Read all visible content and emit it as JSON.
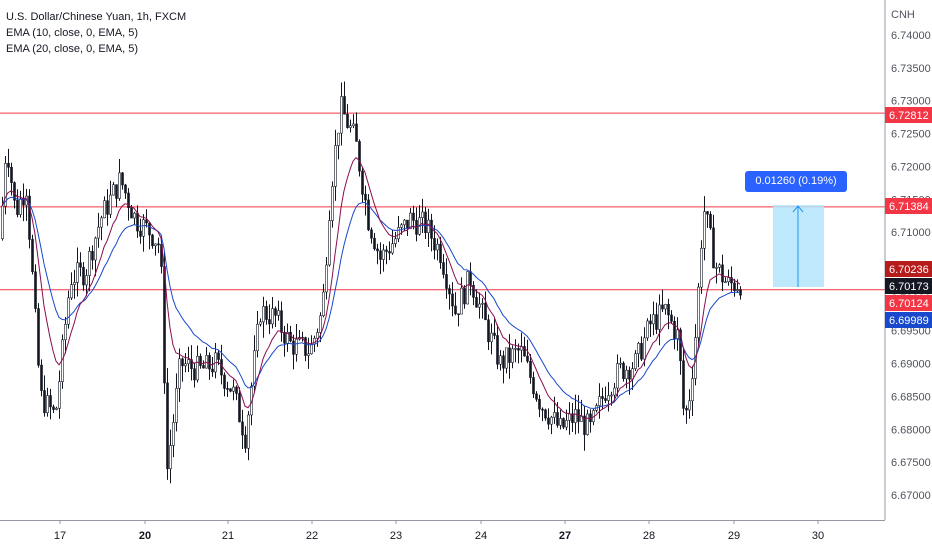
{
  "legend": {
    "title": "U.S. Dollar/Chinese Yuan, 1h, FXCM",
    "ema1": "EMA (10, close, 0, EMA, 5)",
    "ema2": "EMA (20, close, 0, EMA, 5)"
  },
  "measure": {
    "label": "0.01260 (0.19%) 126.0"
  },
  "chart_data": {
    "type": "candlestick",
    "currency_label": "CNH",
    "ylim": [
      6.665,
      6.745
    ],
    "y_ticks": [
      "6.67000",
      "6.67500",
      "6.68000",
      "6.68500",
      "6.69000",
      "6.69500",
      "6.70000",
      "6.70500",
      "6.71000",
      "6.71500",
      "6.72000",
      "6.72500",
      "6.73000",
      "6.73500",
      "6.74000"
    ],
    "x_ticks": [
      {
        "label": "17",
        "bold": false
      },
      {
        "label": "20",
        "bold": true
      },
      {
        "label": "21",
        "bold": false
      },
      {
        "label": "22",
        "bold": false
      },
      {
        "label": "23",
        "bold": false
      },
      {
        "label": "24",
        "bold": false
      },
      {
        "label": "27",
        "bold": true
      },
      {
        "label": "28",
        "bold": false
      },
      {
        "label": "29",
        "bold": false
      },
      {
        "label": "30",
        "bold": false
      }
    ],
    "horizontal_lines": [
      6.72812,
      6.71384,
      6.70124
    ],
    "price_tags": [
      {
        "value": "6.72812",
        "color": "#f23645"
      },
      {
        "value": "6.71384",
        "color": "#f23645"
      },
      {
        "value": "6.70236",
        "color": "#b71c1c"
      },
      {
        "value": "6.70173",
        "color": "#131722"
      },
      {
        "value": "6.70124",
        "color": "#f23645"
      },
      {
        "value": "6.69989",
        "color": "#1848cc"
      }
    ],
    "ema_colors": {
      "ema10": "#880e4f",
      "ema20": "#1848cc"
    },
    "candle_color": "#131722",
    "price_path": [
      [
        0,
        6.709
      ],
      [
        6,
        6.724
      ],
      [
        15,
        6.713
      ],
      [
        26,
        6.717
      ],
      [
        40,
        6.685
      ],
      [
        55,
        6.682
      ],
      [
        70,
        6.703
      ],
      [
        85,
        6.704
      ],
      [
        100,
        6.712
      ],
      [
        120,
        6.718
      ],
      [
        135,
        6.712
      ],
      [
        150,
        6.71
      ],
      [
        160,
        6.708
      ],
      [
        167,
        6.674
      ],
      [
        180,
        6.69
      ],
      [
        200,
        6.689
      ],
      [
        215,
        6.69
      ],
      [
        232,
        6.686
      ],
      [
        245,
        6.679
      ],
      [
        260,
        6.698
      ],
      [
        275,
        6.697
      ],
      [
        290,
        6.693
      ],
      [
        310,
        6.692
      ],
      [
        322,
        6.698
      ],
      [
        330,
        6.716
      ],
      [
        340,
        6.729
      ],
      [
        355,
        6.724
      ],
      [
        368,
        6.712
      ],
      [
        380,
        6.706
      ],
      [
        395,
        6.709
      ],
      [
        410,
        6.712
      ],
      [
        425,
        6.711
      ],
      [
        440,
        6.707
      ],
      [
        455,
        6.698
      ],
      [
        470,
        6.703
      ],
      [
        485,
        6.696
      ],
      [
        500,
        6.69
      ],
      [
        520,
        6.692
      ],
      [
        540,
        6.684
      ],
      [
        560,
        6.68
      ],
      [
        575,
        6.682
      ],
      [
        590,
        6.68
      ],
      [
        605,
        6.686
      ],
      [
        620,
        6.689
      ],
      [
        635,
        6.69
      ],
      [
        650,
        6.696
      ],
      [
        665,
        6.698
      ],
      [
        678,
        6.694
      ],
      [
        684,
        6.681
      ],
      [
        690,
        6.686
      ],
      [
        696,
        6.696
      ],
      [
        703,
        6.714
      ],
      [
        715,
        6.705
      ],
      [
        727,
        6.702
      ],
      [
        740,
        6.7023
      ]
    ]
  }
}
